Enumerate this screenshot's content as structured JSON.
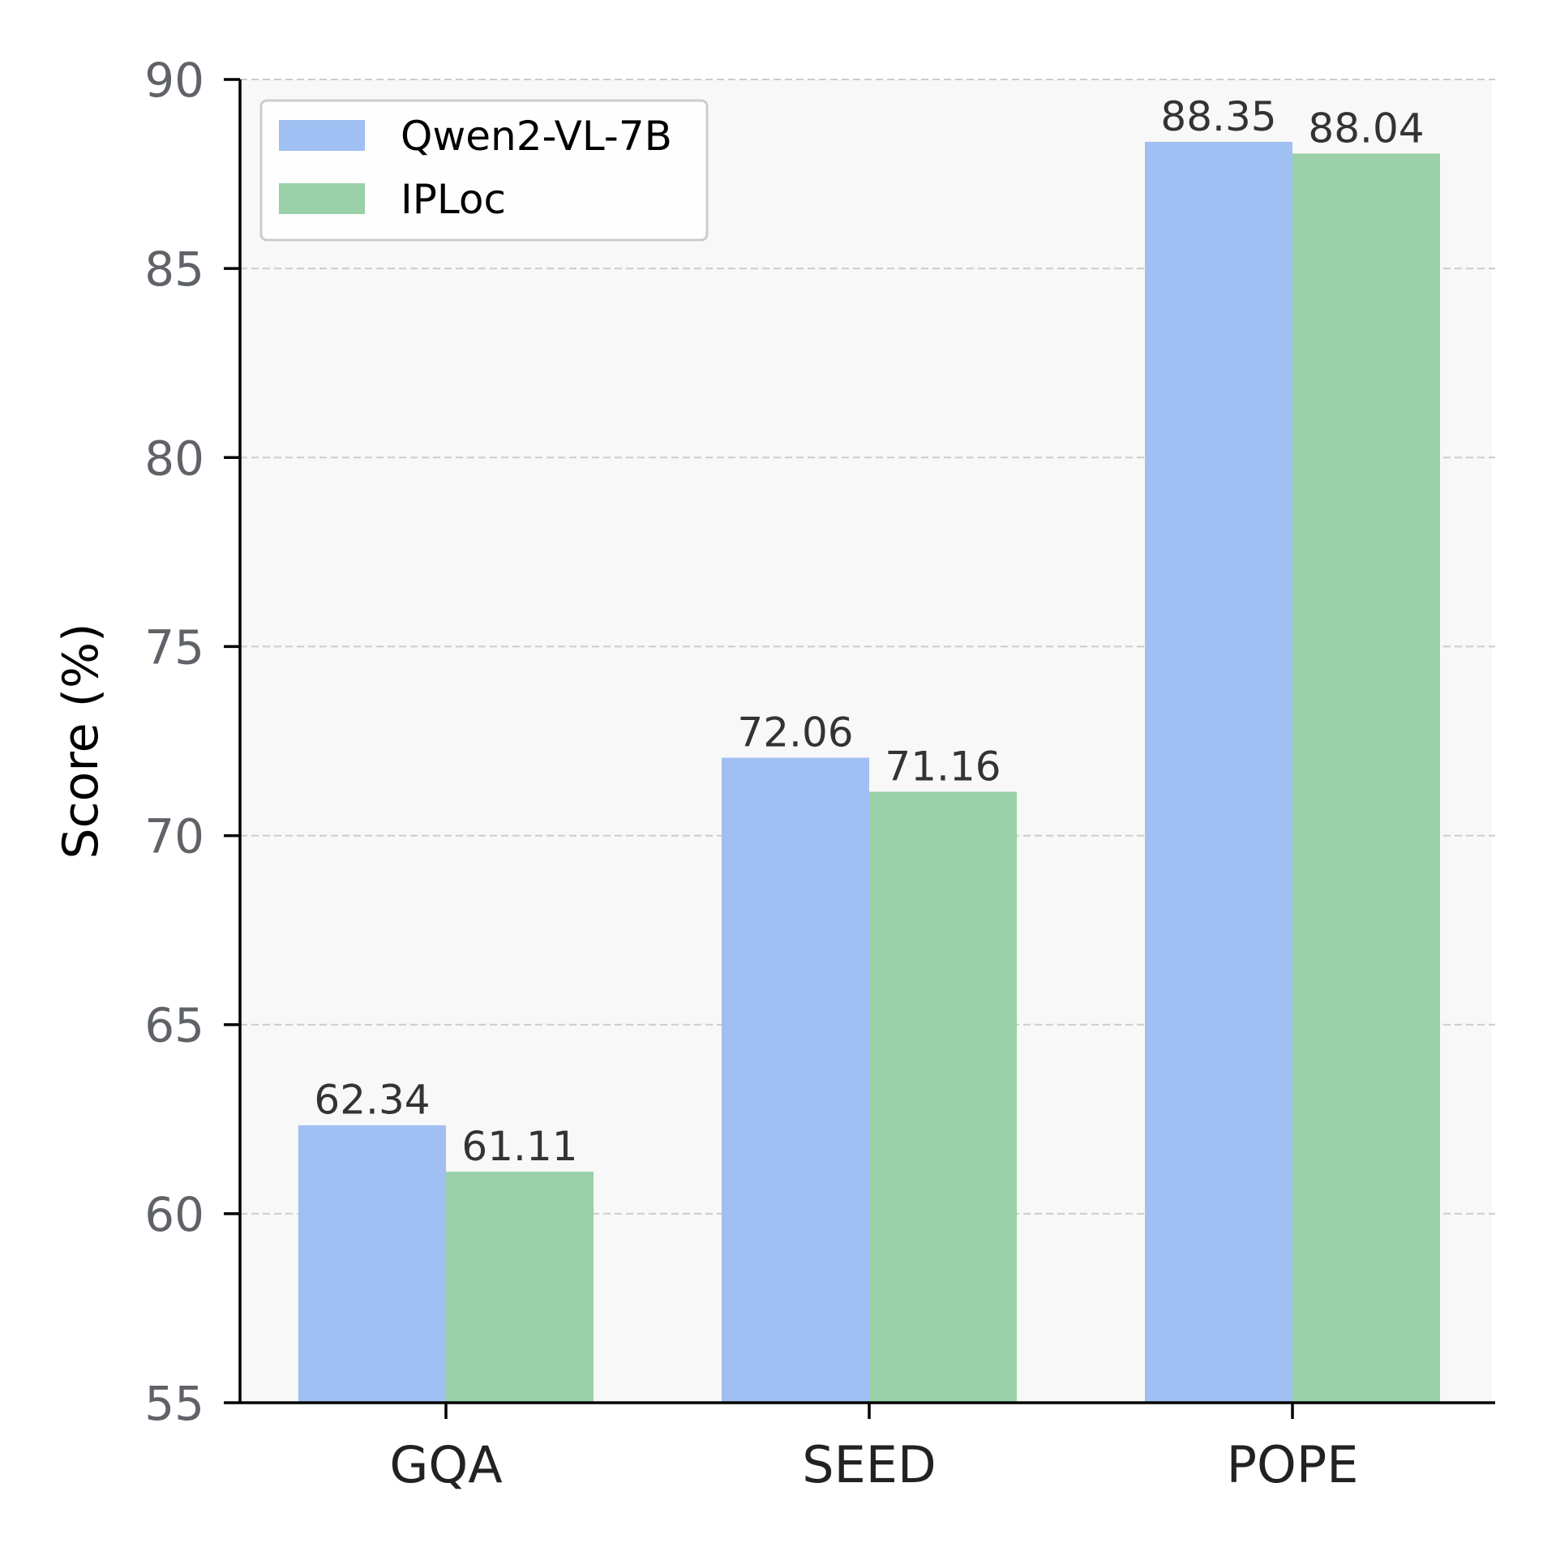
{
  "chart_data": {
    "type": "bar",
    "title": "",
    "xlabel": "",
    "ylabel": "Score (%)",
    "ylim": [
      55,
      90
    ],
    "yticks": [
      55,
      60,
      65,
      70,
      75,
      80,
      85,
      90
    ],
    "grid": true,
    "legend_position": "top-left",
    "categories": [
      "GQA",
      "SEED",
      "POPE"
    ],
    "series": [
      {
        "name": "Qwen2-VL-7B",
        "color": "#a0bff3",
        "values": [
          62.34,
          72.06,
          88.35
        ],
        "labels": [
          "62.34",
          "72.06",
          "88.35"
        ]
      },
      {
        "name": "IPLoc",
        "color": "#99d0a7",
        "values": [
          61.11,
          71.16,
          88.04
        ],
        "labels": [
          "61.11",
          "71.16",
          "88.04"
        ]
      }
    ]
  },
  "colors": {
    "plot_background": "#f8f8f8",
    "grid": "#cccccc",
    "axis": "#000000"
  }
}
